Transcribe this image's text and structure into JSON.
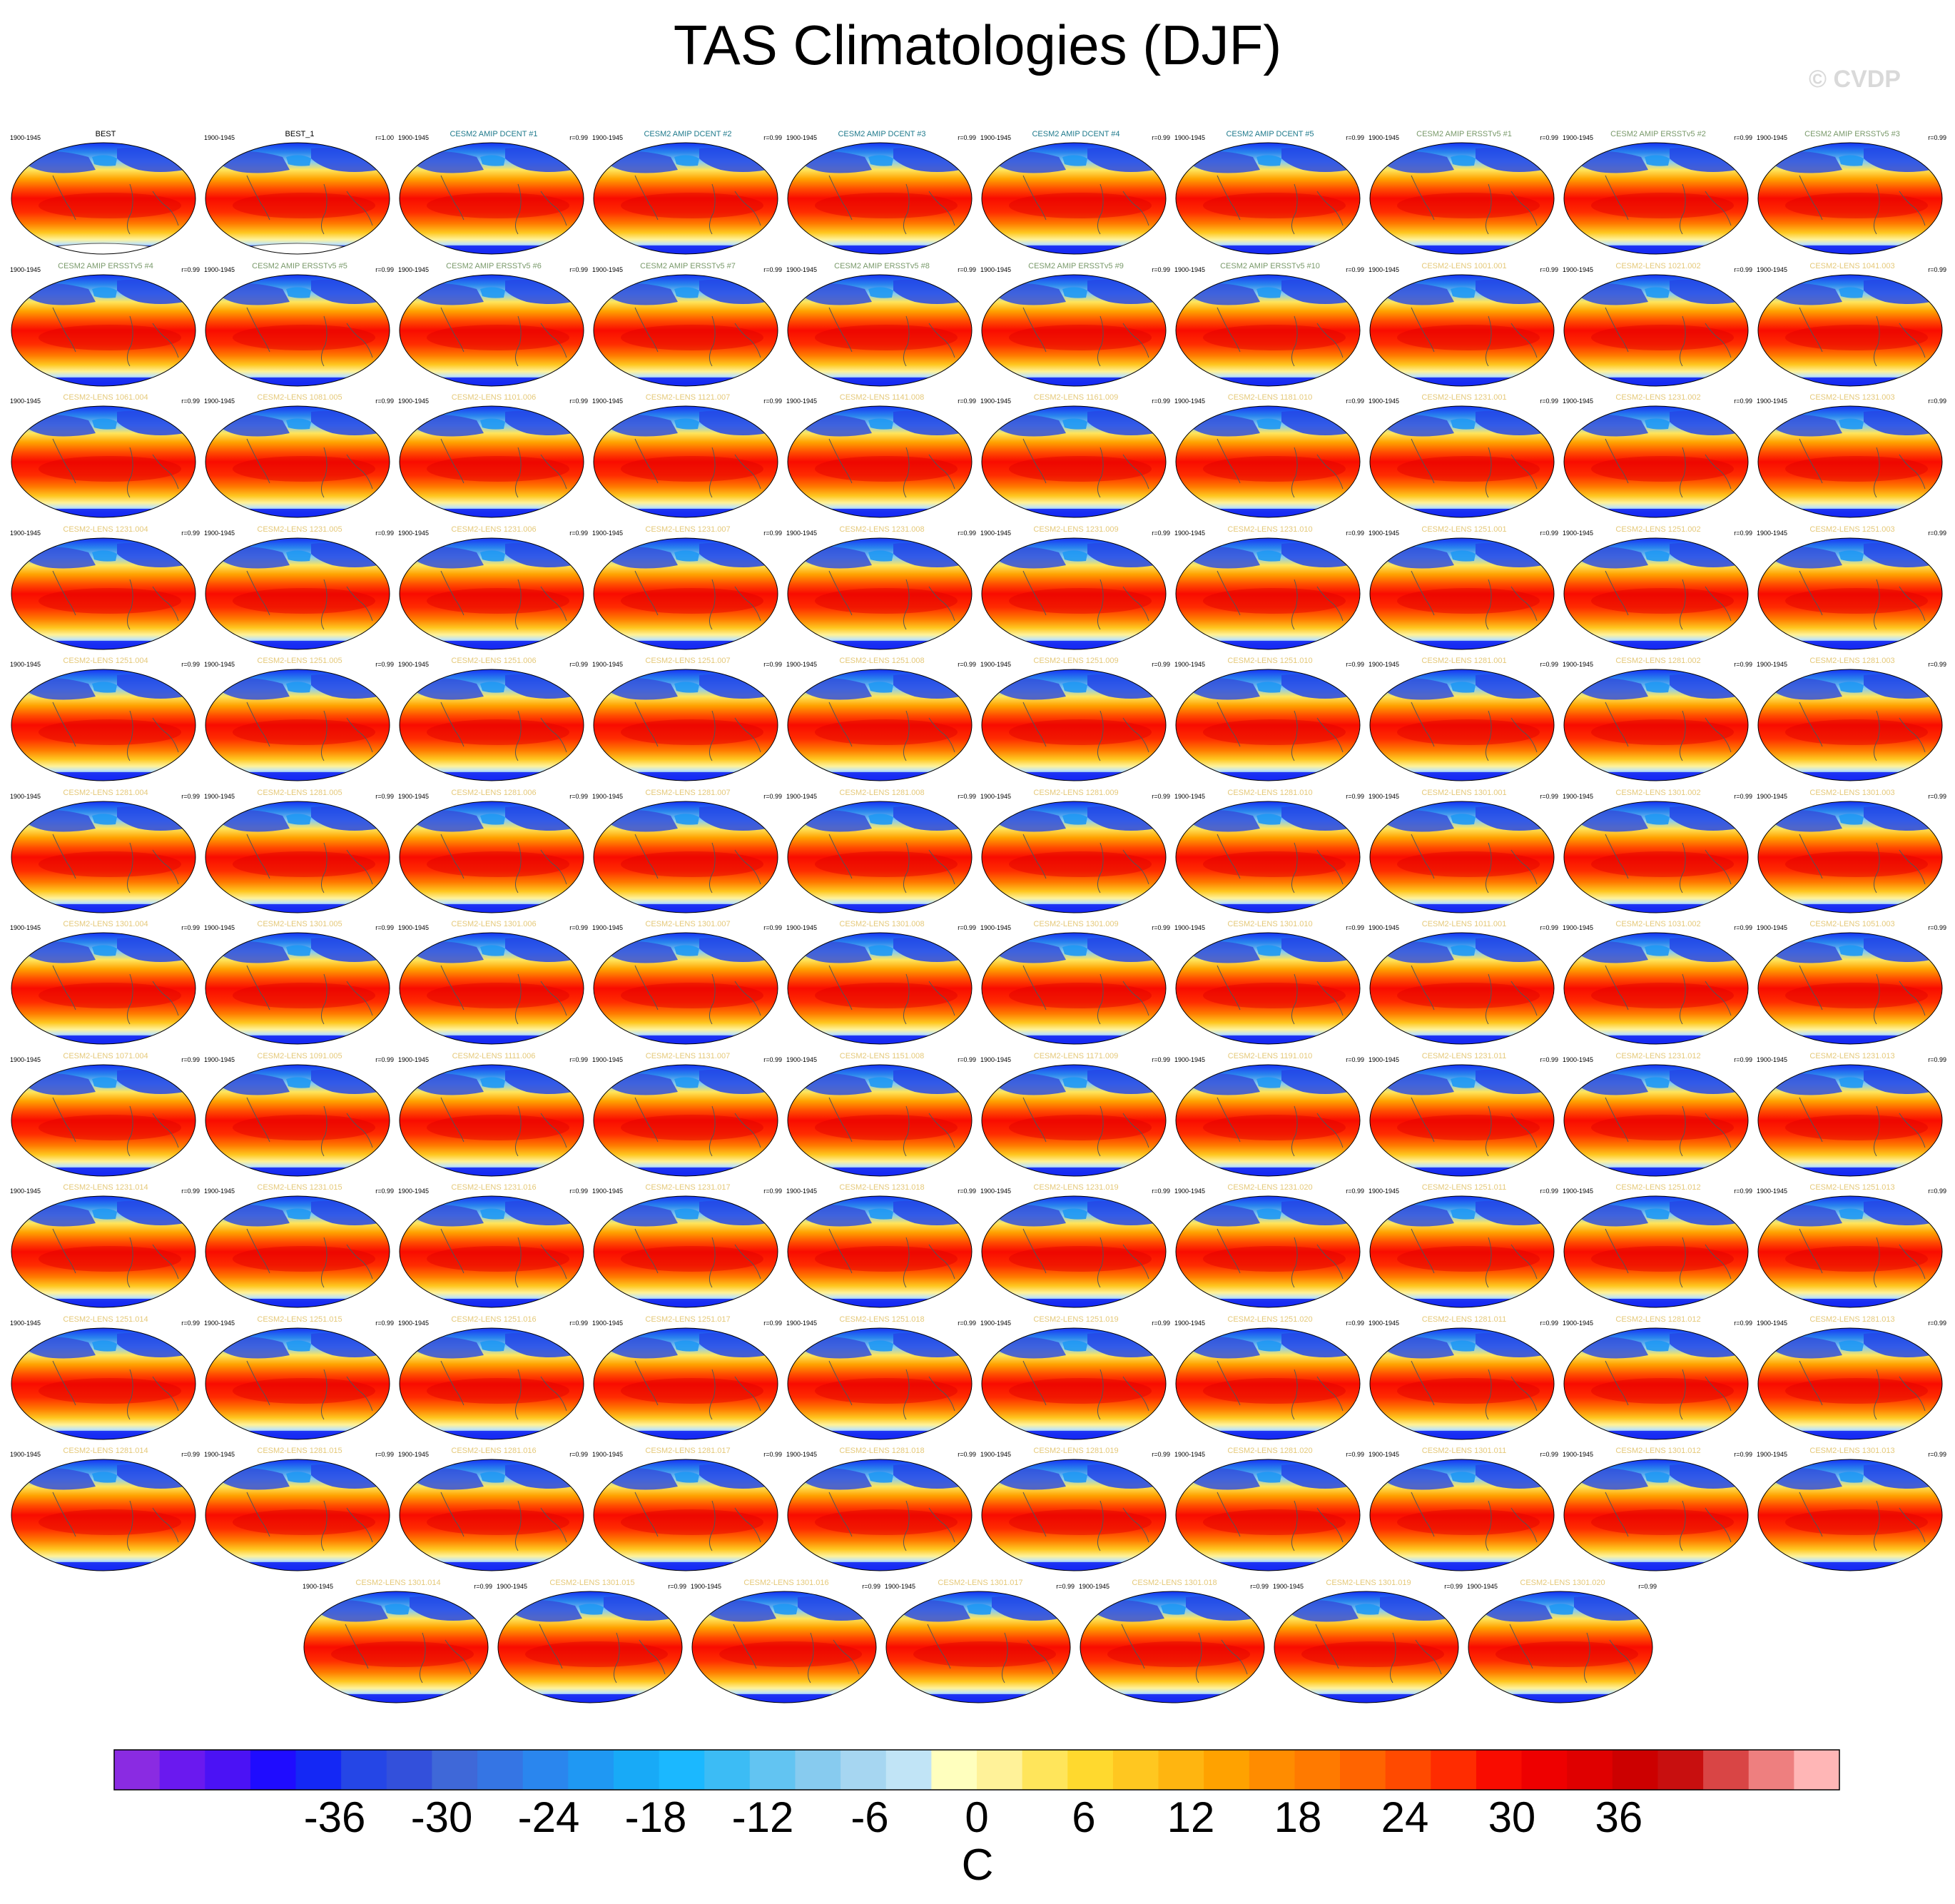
{
  "title": "TAS Climatologies (DJF)",
  "watermark": "© CVDP",
  "chart_data": {
    "type": "heatmap",
    "title": "TAS Climatologies (DJF)",
    "period": "1900-1945",
    "colorbar": {
      "unit": "C",
      "ticks": [
        -36,
        -30,
        -24,
        -18,
        -12,
        -6,
        0,
        6,
        12,
        18,
        24,
        30,
        36
      ],
      "levels": [
        -42,
        -39,
        -36,
        -33,
        -30,
        -27,
        -24,
        -21,
        -18,
        -15,
        -12,
        -9,
        -6,
        -3,
        0,
        3,
        6,
        9,
        12,
        15,
        18,
        21,
        24,
        27,
        30,
        33,
        36,
        39,
        42
      ],
      "colors": [
        "#8a2be2",
        "#6a19ef",
        "#4b12f5",
        "#1f0cff",
        "#1428f5",
        "#2546e6",
        "#3350db",
        "#3f68d8",
        "#3575e4",
        "#2a86ee",
        "#1f98f3",
        "#18aaf7",
        "#1bb8ff",
        "#3cbcf5",
        "#62c4f2",
        "#87cbef",
        "#a6d6f1",
        "#c1e4f6",
        "#ffffbe",
        "#fff299",
        "#ffe55b",
        "#ffd92e",
        "#ffc720",
        "#ffb510",
        "#ffa200",
        "#ff8c00",
        "#ff7a00",
        "#ff6400",
        "#ff4a00",
        "#ff2c00",
        "#f90c00",
        "#ee0000",
        "#df0000",
        "#cc0000",
        "#c80f0f",
        "#d94545",
        "#ee7f7f",
        "#ffb6b6"
      ]
    },
    "panels": [
      {
        "label": "BEST",
        "period": "1900-1945",
        "r": "",
        "color": "#000000"
      },
      {
        "label": "BEST_1",
        "period": "1900-1945",
        "r": "r=1.00",
        "color": "#000000"
      },
      {
        "label": "CESM2 AMIP DCENT #1",
        "period": "1900-1945",
        "r": "r=0.99",
        "color": "#1f7a8c"
      },
      {
        "label": "CESM2 AMIP DCENT #2",
        "period": "1900-1945",
        "r": "r=0.99",
        "color": "#1f7a8c"
      },
      {
        "label": "CESM2 AMIP DCENT #3",
        "period": "1900-1945",
        "r": "r=0.99",
        "color": "#1f7a8c"
      },
      {
        "label": "CESM2 AMIP DCENT #4",
        "period": "1900-1945",
        "r": "r=0.99",
        "color": "#1f7a8c"
      },
      {
        "label": "CESM2 AMIP DCENT #5",
        "period": "1900-1945",
        "r": "r=0.99",
        "color": "#1f7a8c"
      },
      {
        "label": "CESM2 AMIP ERSSTv5 #1",
        "period": "1900-1945",
        "r": "r=0.99",
        "color": "#7a9a6b"
      },
      {
        "label": "CESM2 AMIP ERSSTv5 #2",
        "period": "1900-1945",
        "r": "r=0.99",
        "color": "#7a9a6b"
      },
      {
        "label": "CESM2 AMIP ERSSTv5 #3",
        "period": "1900-1945",
        "r": "r=0.99",
        "color": "#7a9a6b"
      },
      {
        "label": "CESM2 AMIP ERSSTv5 #4",
        "period": "1900-1945",
        "r": "r=0.99",
        "color": "#7a9a6b"
      },
      {
        "label": "CESM2 AMIP ERSSTv5 #5",
        "period": "1900-1945",
        "r": "r=0.99",
        "color": "#7a9a6b"
      },
      {
        "label": "CESM2 AMIP ERSSTv5 #6",
        "period": "1900-1945",
        "r": "r=0.99",
        "color": "#7a9a6b"
      },
      {
        "label": "CESM2 AMIP ERSSTv5 #7",
        "period": "1900-1945",
        "r": "r=0.99",
        "color": "#7a9a6b"
      },
      {
        "label": "CESM2 AMIP ERSSTv5 #8",
        "period": "1900-1945",
        "r": "r=0.99",
        "color": "#7a9a6b"
      },
      {
        "label": "CESM2 AMIP ERSSTv5 #9",
        "period": "1900-1945",
        "r": "r=0.99",
        "color": "#7a9a6b"
      },
      {
        "label": "CESM2 AMIP ERSSTv5 #10",
        "period": "1900-1945",
        "r": "r=0.99",
        "color": "#7a9a6b"
      },
      {
        "label": "CESM2-LENS 1001.001",
        "period": "1900-1945",
        "r": "r=0.99",
        "color": "#e5c97a"
      },
      {
        "label": "CESM2-LENS 1021.002",
        "period": "1900-1945",
        "r": "r=0.99",
        "color": "#e5c97a"
      },
      {
        "label": "CESM2-LENS 1041.003",
        "period": "1900-1945",
        "r": "r=0.99",
        "color": "#e5c97a"
      },
      {
        "label": "CESM2-LENS 1061.004",
        "period": "1900-1945",
        "r": "r=0.99",
        "color": "#e5c97a"
      },
      {
        "label": "CESM2-LENS 1081.005",
        "period": "1900-1945",
        "r": "r=0.99",
        "color": "#e5c97a"
      },
      {
        "label": "CESM2-LENS 1101.006",
        "period": "1900-1945",
        "r": "r=0.99",
        "color": "#e5c97a"
      },
      {
        "label": "CESM2-LENS 1121.007",
        "period": "1900-1945",
        "r": "r=0.99",
        "color": "#e5c97a"
      },
      {
        "label": "CESM2-LENS 1141.008",
        "period": "1900-1945",
        "r": "r=0.99",
        "color": "#e5c97a"
      },
      {
        "label": "CESM2-LENS 1161.009",
        "period": "1900-1945",
        "r": "r=0.99",
        "color": "#e5c97a"
      },
      {
        "label": "CESM2-LENS 1181.010",
        "period": "1900-1945",
        "r": "r=0.99",
        "color": "#e5c97a"
      },
      {
        "label": "CESM2-LENS 1231.001",
        "period": "1900-1945",
        "r": "r=0.99",
        "color": "#e5c97a"
      },
      {
        "label": "CESM2-LENS 1231.002",
        "period": "1900-1945",
        "r": "r=0.99",
        "color": "#e5c97a"
      },
      {
        "label": "CESM2-LENS 1231.003",
        "period": "1900-1945",
        "r": "r=0.99",
        "color": "#e5c97a"
      },
      {
        "label": "CESM2-LENS 1231.004",
        "period": "1900-1945",
        "r": "r=0.99",
        "color": "#e5c97a"
      },
      {
        "label": "CESM2-LENS 1231.005",
        "period": "1900-1945",
        "r": "r=0.99",
        "color": "#e5c97a"
      },
      {
        "label": "CESM2-LENS 1231.006",
        "period": "1900-1945",
        "r": "r=0.99",
        "color": "#e5c97a"
      },
      {
        "label": "CESM2-LENS 1231.007",
        "period": "1900-1945",
        "r": "r=0.99",
        "color": "#e5c97a"
      },
      {
        "label": "CESM2-LENS 1231.008",
        "period": "1900-1945",
        "r": "r=0.99",
        "color": "#e5c97a"
      },
      {
        "label": "CESM2-LENS 1231.009",
        "period": "1900-1945",
        "r": "r=0.99",
        "color": "#e5c97a"
      },
      {
        "label": "CESM2-LENS 1231.010",
        "period": "1900-1945",
        "r": "r=0.99",
        "color": "#e5c97a"
      },
      {
        "label": "CESM2-LENS 1251.001",
        "period": "1900-1945",
        "r": "r=0.99",
        "color": "#e5c97a"
      },
      {
        "label": "CESM2-LENS 1251.002",
        "period": "1900-1945",
        "r": "r=0.99",
        "color": "#e5c97a"
      },
      {
        "label": "CESM2-LENS 1251.003",
        "period": "1900-1945",
        "r": "r=0.99",
        "color": "#e5c97a"
      },
      {
        "label": "CESM2-LENS 1251.004",
        "period": "1900-1945",
        "r": "r=0.99",
        "color": "#e5c97a"
      },
      {
        "label": "CESM2-LENS 1251.005",
        "period": "1900-1945",
        "r": "r=0.99",
        "color": "#e5c97a"
      },
      {
        "label": "CESM2-LENS 1251.006",
        "period": "1900-1945",
        "r": "r=0.99",
        "color": "#e5c97a"
      },
      {
        "label": "CESM2-LENS 1251.007",
        "period": "1900-1945",
        "r": "r=0.99",
        "color": "#e5c97a"
      },
      {
        "label": "CESM2-LENS 1251.008",
        "period": "1900-1945",
        "r": "r=0.99",
        "color": "#e5c97a"
      },
      {
        "label": "CESM2-LENS 1251.009",
        "period": "1900-1945",
        "r": "r=0.99",
        "color": "#e5c97a"
      },
      {
        "label": "CESM2-LENS 1251.010",
        "period": "1900-1945",
        "r": "r=0.99",
        "color": "#e5c97a"
      },
      {
        "label": "CESM2-LENS 1281.001",
        "period": "1900-1945",
        "r": "r=0.99",
        "color": "#e5c97a"
      },
      {
        "label": "CESM2-LENS 1281.002",
        "period": "1900-1945",
        "r": "r=0.99",
        "color": "#e5c97a"
      },
      {
        "label": "CESM2-LENS 1281.003",
        "period": "1900-1945",
        "r": "r=0.99",
        "color": "#e5c97a"
      },
      {
        "label": "CESM2-LENS 1281.004",
        "period": "1900-1945",
        "r": "r=0.99",
        "color": "#e5c97a"
      },
      {
        "label": "CESM2-LENS 1281.005",
        "period": "1900-1945",
        "r": "r=0.99",
        "color": "#e5c97a"
      },
      {
        "label": "CESM2-LENS 1281.006",
        "period": "1900-1945",
        "r": "r=0.99",
        "color": "#e5c97a"
      },
      {
        "label": "CESM2-LENS 1281.007",
        "period": "1900-1945",
        "r": "r=0.99",
        "color": "#e5c97a"
      },
      {
        "label": "CESM2-LENS 1281.008",
        "period": "1900-1945",
        "r": "r=0.99",
        "color": "#e5c97a"
      },
      {
        "label": "CESM2-LENS 1281.009",
        "period": "1900-1945",
        "r": "r=0.99",
        "color": "#e5c97a"
      },
      {
        "label": "CESM2-LENS 1281.010",
        "period": "1900-1945",
        "r": "r=0.99",
        "color": "#e5c97a"
      },
      {
        "label": "CESM2-LENS 1301.001",
        "period": "1900-1945",
        "r": "r=0.99",
        "color": "#e5c97a"
      },
      {
        "label": "CESM2-LENS 1301.002",
        "period": "1900-1945",
        "r": "r=0.99",
        "color": "#e5c97a"
      },
      {
        "label": "CESM2-LENS 1301.003",
        "period": "1900-1945",
        "r": "r=0.99",
        "color": "#e5c97a"
      },
      {
        "label": "CESM2-LENS 1301.004",
        "period": "1900-1945",
        "r": "r=0.99",
        "color": "#e5c97a"
      },
      {
        "label": "CESM2-LENS 1301.005",
        "period": "1900-1945",
        "r": "r=0.99",
        "color": "#e5c97a"
      },
      {
        "label": "CESM2-LENS 1301.006",
        "period": "1900-1945",
        "r": "r=0.99",
        "color": "#e5c97a"
      },
      {
        "label": "CESM2-LENS 1301.007",
        "period": "1900-1945",
        "r": "r=0.99",
        "color": "#e5c97a"
      },
      {
        "label": "CESM2-LENS 1301.008",
        "period": "1900-1945",
        "r": "r=0.99",
        "color": "#e5c97a"
      },
      {
        "label": "CESM2-LENS 1301.009",
        "period": "1900-1945",
        "r": "r=0.99",
        "color": "#e5c97a"
      },
      {
        "label": "CESM2-LENS 1301.010",
        "period": "1900-1945",
        "r": "r=0.99",
        "color": "#e5c97a"
      },
      {
        "label": "CESM2-LENS 1011.001",
        "period": "1900-1945",
        "r": "r=0.99",
        "color": "#e5c97a"
      },
      {
        "label": "CESM2-LENS 1031.002",
        "period": "1900-1945",
        "r": "r=0.99",
        "color": "#e5c97a"
      },
      {
        "label": "CESM2-LENS 1051.003",
        "period": "1900-1945",
        "r": "r=0.99",
        "color": "#e5c97a"
      },
      {
        "label": "CESM2-LENS 1071.004",
        "period": "1900-1945",
        "r": "r=0.99",
        "color": "#e5c97a"
      },
      {
        "label": "CESM2-LENS 1091.005",
        "period": "1900-1945",
        "r": "r=0.99",
        "color": "#e5c97a"
      },
      {
        "label": "CESM2-LENS 1111.006",
        "period": "1900-1945",
        "r": "r=0.99",
        "color": "#e5c97a"
      },
      {
        "label": "CESM2-LENS 1131.007",
        "period": "1900-1945",
        "r": "r=0.99",
        "color": "#e5c97a"
      },
      {
        "label": "CESM2-LENS 1151.008",
        "period": "1900-1945",
        "r": "r=0.99",
        "color": "#e5c97a"
      },
      {
        "label": "CESM2-LENS 1171.009",
        "period": "1900-1945",
        "r": "r=0.99",
        "color": "#e5c97a"
      },
      {
        "label": "CESM2-LENS 1191.010",
        "period": "1900-1945",
        "r": "r=0.99",
        "color": "#e5c97a"
      },
      {
        "label": "CESM2-LENS 1231.011",
        "period": "1900-1945",
        "r": "r=0.99",
        "color": "#e5c97a"
      },
      {
        "label": "CESM2-LENS 1231.012",
        "period": "1900-1945",
        "r": "r=0.99",
        "color": "#e5c97a"
      },
      {
        "label": "CESM2-LENS 1231.013",
        "period": "1900-1945",
        "r": "r=0.99",
        "color": "#e5c97a"
      },
      {
        "label": "CESM2-LENS 1231.014",
        "period": "1900-1945",
        "r": "r=0.99",
        "color": "#e5c97a"
      },
      {
        "label": "CESM2-LENS 1231.015",
        "period": "1900-1945",
        "r": "r=0.99",
        "color": "#e5c97a"
      },
      {
        "label": "CESM2-LENS 1231.016",
        "period": "1900-1945",
        "r": "r=0.99",
        "color": "#e5c97a"
      },
      {
        "label": "CESM2-LENS 1231.017",
        "period": "1900-1945",
        "r": "r=0.99",
        "color": "#e5c97a"
      },
      {
        "label": "CESM2-LENS 1231.018",
        "period": "1900-1945",
        "r": "r=0.99",
        "color": "#e5c97a"
      },
      {
        "label": "CESM2-LENS 1231.019",
        "period": "1900-1945",
        "r": "r=0.99",
        "color": "#e5c97a"
      },
      {
        "label": "CESM2-LENS 1231.020",
        "period": "1900-1945",
        "r": "r=0.99",
        "color": "#e5c97a"
      },
      {
        "label": "CESM2-LENS 1251.011",
        "period": "1900-1945",
        "r": "r=0.99",
        "color": "#e5c97a"
      },
      {
        "label": "CESM2-LENS 1251.012",
        "period": "1900-1945",
        "r": "r=0.99",
        "color": "#e5c97a"
      },
      {
        "label": "CESM2-LENS 1251.013",
        "period": "1900-1945",
        "r": "r=0.99",
        "color": "#e5c97a"
      },
      {
        "label": "CESM2-LENS 1251.014",
        "period": "1900-1945",
        "r": "r=0.99",
        "color": "#e5c97a"
      },
      {
        "label": "CESM2-LENS 1251.015",
        "period": "1900-1945",
        "r": "r=0.99",
        "color": "#e5c97a"
      },
      {
        "label": "CESM2-LENS 1251.016",
        "period": "1900-1945",
        "r": "r=0.99",
        "color": "#e5c97a"
      },
      {
        "label": "CESM2-LENS 1251.017",
        "period": "1900-1945",
        "r": "r=0.99",
        "color": "#e5c97a"
      },
      {
        "label": "CESM2-LENS 1251.018",
        "period": "1900-1945",
        "r": "r=0.99",
        "color": "#e5c97a"
      },
      {
        "label": "CESM2-LENS 1251.019",
        "period": "1900-1945",
        "r": "r=0.99",
        "color": "#e5c97a"
      },
      {
        "label": "CESM2-LENS 1251.020",
        "period": "1900-1945",
        "r": "r=0.99",
        "color": "#e5c97a"
      },
      {
        "label": "CESM2-LENS 1281.011",
        "period": "1900-1945",
        "r": "r=0.99",
        "color": "#e5c97a"
      },
      {
        "label": "CESM2-LENS 1281.012",
        "period": "1900-1945",
        "r": "r=0.99",
        "color": "#e5c97a"
      },
      {
        "label": "CESM2-LENS 1281.013",
        "period": "1900-1945",
        "r": "r=0.99",
        "color": "#e5c97a"
      },
      {
        "label": "CESM2-LENS 1281.014",
        "period": "1900-1945",
        "r": "r=0.99",
        "color": "#e5c97a"
      },
      {
        "label": "CESM2-LENS 1281.015",
        "period": "1900-1945",
        "r": "r=0.99",
        "color": "#e5c97a"
      },
      {
        "label": "CESM2-LENS 1281.016",
        "period": "1900-1945",
        "r": "r=0.99",
        "color": "#e5c97a"
      },
      {
        "label": "CESM2-LENS 1281.017",
        "period": "1900-1945",
        "r": "r=0.99",
        "color": "#e5c97a"
      },
      {
        "label": "CESM2-LENS 1281.018",
        "period": "1900-1945",
        "r": "r=0.99",
        "color": "#e5c97a"
      },
      {
        "label": "CESM2-LENS 1281.019",
        "period": "1900-1945",
        "r": "r=0.99",
        "color": "#e5c97a"
      },
      {
        "label": "CESM2-LENS 1281.020",
        "period": "1900-1945",
        "r": "r=0.99",
        "color": "#e5c97a"
      },
      {
        "label": "CESM2-LENS 1301.011",
        "period": "1900-1945",
        "r": "r=0.99",
        "color": "#e5c97a"
      },
      {
        "label": "CESM2-LENS 1301.012",
        "period": "1900-1945",
        "r": "r=0.99",
        "color": "#e5c97a"
      },
      {
        "label": "CESM2-LENS 1301.013",
        "period": "1900-1945",
        "r": "r=0.99",
        "color": "#e5c97a"
      },
      {
        "label": "CESM2-LENS 1301.014",
        "period": "1900-1945",
        "r": "r=0.99",
        "color": "#e5c97a"
      },
      {
        "label": "CESM2-LENS 1301.015",
        "period": "1900-1945",
        "r": "r=0.99",
        "color": "#e5c97a"
      },
      {
        "label": "CESM2-LENS 1301.016",
        "period": "1900-1945",
        "r": "r=0.99",
        "color": "#e5c97a"
      },
      {
        "label": "CESM2-LENS 1301.017",
        "period": "1900-1945",
        "r": "r=0.99",
        "color": "#e5c97a"
      },
      {
        "label": "CESM2-LENS 1301.018",
        "period": "1900-1945",
        "r": "r=0.99",
        "color": "#e5c97a"
      },
      {
        "label": "CESM2-LENS 1301.019",
        "period": "1900-1945",
        "r": "r=0.99",
        "color": "#e5c97a"
      },
      {
        "label": "CESM2-LENS 1301.020",
        "period": "1900-1945",
        "r": "r=0.99",
        "color": "#e5c97a"
      }
    ]
  }
}
